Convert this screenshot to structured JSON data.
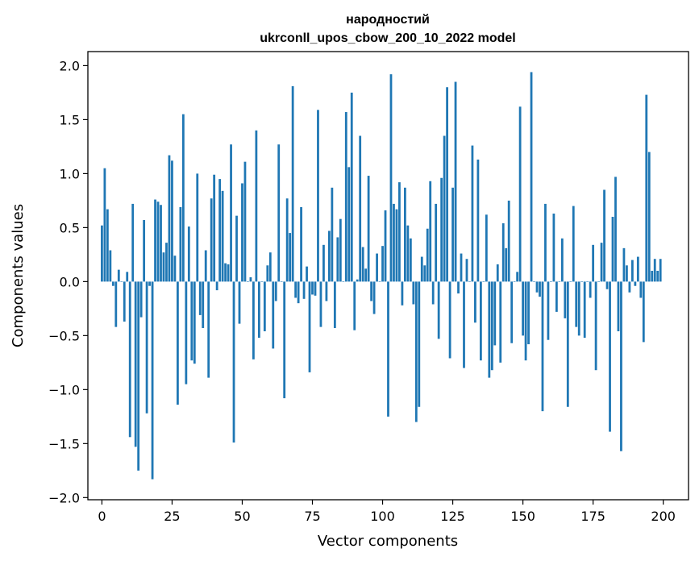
{
  "chart_data": {
    "type": "bar",
    "title": "народностий",
    "subtitle": "ukrconll_upos_cbow_200_10_2022 model",
    "xlabel": "Vector components",
    "ylabel": "Components values",
    "xlim": [
      -5,
      209
    ],
    "ylim": [
      -2.02,
      2.13
    ],
    "xticks": [
      0,
      25,
      50,
      75,
      100,
      125,
      150,
      175,
      200
    ],
    "yticks": [
      -2.0,
      -1.5,
      -1.0,
      -0.5,
      0.0,
      0.5,
      1.0,
      1.5,
      2.0
    ],
    "ytick_labels": [
      "−2.0",
      "−1.5",
      "−1.0",
      "−0.5",
      "0.0",
      "0.5",
      "1.0",
      "1.5",
      "2.0"
    ],
    "bar_color": "#1f77b4",
    "grid": false,
    "x": [
      0,
      1,
      2,
      3,
      4,
      5,
      6,
      7,
      8,
      9,
      10,
      11,
      12,
      13,
      14,
      15,
      16,
      17,
      18,
      19,
      20,
      21,
      22,
      23,
      24,
      25,
      26,
      27,
      28,
      29,
      30,
      31,
      32,
      33,
      34,
      35,
      36,
      37,
      38,
      39,
      40,
      41,
      42,
      43,
      44,
      45,
      46,
      47,
      48,
      49,
      50,
      51,
      52,
      53,
      54,
      55,
      56,
      57,
      58,
      59,
      60,
      61,
      62,
      63,
      64,
      65,
      66,
      67,
      68,
      69,
      70,
      71,
      72,
      73,
      74,
      75,
      76,
      77,
      78,
      79,
      80,
      81,
      82,
      83,
      84,
      85,
      86,
      87,
      88,
      89,
      90,
      91,
      92,
      93,
      94,
      95,
      96,
      97,
      98,
      99,
      100,
      101,
      102,
      103,
      104,
      105,
      106,
      107,
      108,
      109,
      110,
      111,
      112,
      113,
      114,
      115,
      116,
      117,
      118,
      119,
      120,
      121,
      122,
      123,
      124,
      125,
      126,
      127,
      128,
      129,
      130,
      131,
      132,
      133,
      134,
      135,
      136,
      137,
      138,
      139,
      140,
      141,
      142,
      143,
      144,
      145,
      146,
      147,
      148,
      149,
      150,
      151,
      152,
      153,
      154,
      155,
      156,
      157,
      158,
      159,
      160,
      161,
      162,
      163,
      164,
      165,
      166,
      167,
      168,
      169,
      170,
      171,
      172,
      173,
      174,
      175,
      176,
      177,
      178,
      179,
      180,
      181,
      182,
      183,
      184,
      185,
      186,
      187,
      188,
      189,
      190,
      191,
      192,
      193,
      194,
      195,
      196,
      197,
      198,
      199
    ],
    "values": [
      0.52,
      1.05,
      0.67,
      0.29,
      -0.04,
      -0.42,
      0.11,
      0.0,
      -0.37,
      0.09,
      -1.44,
      0.72,
      -1.53,
      -1.75,
      -0.33,
      0.57,
      -1.22,
      -0.04,
      -1.83,
      0.76,
      0.74,
      0.71,
      0.27,
      0.36,
      1.17,
      1.12,
      0.24,
      -1.14,
      0.69,
      1.55,
      -0.95,
      0.51,
      -0.73,
      -0.76,
      1.0,
      -0.31,
      -0.43,
      0.29,
      -0.89,
      0.77,
      0.99,
      -0.08,
      0.95,
      0.84,
      0.17,
      0.16,
      1.27,
      -1.49,
      0.61,
      -0.39,
      0.91,
      1.11,
      0.0,
      0.04,
      -0.72,
      1.4,
      -0.52,
      0.0,
      -0.46,
      0.15,
      0.27,
      -0.62,
      -0.18,
      1.27,
      0.0,
      -1.08,
      0.77,
      0.45,
      1.81,
      -0.15,
      -0.2,
      0.69,
      -0.16,
      0.14,
      -0.84,
      -0.12,
      -0.13,
      1.59,
      -0.42,
      0.34,
      -0.18,
      0.47,
      0.87,
      -0.43,
      0.41,
      0.58,
      0.0,
      1.57,
      1.06,
      1.75,
      -0.45,
      0.02,
      1.35,
      0.32,
      0.12,
      0.98,
      -0.18,
      -0.3,
      0.26,
      0.0,
      0.33,
      0.66,
      -1.25,
      1.92,
      0.72,
      0.67,
      0.92,
      -0.22,
      0.87,
      0.52,
      0.4,
      -0.21,
      -1.3,
      -1.16,
      0.23,
      0.15,
      0.49,
      0.93,
      -0.21,
      0.72,
      -0.53,
      0.96,
      1.35,
      1.8,
      -0.71,
      0.87,
      1.85,
      -0.11,
      0.26,
      -0.8,
      0.21,
      0.0,
      1.26,
      -0.38,
      1.13,
      -0.73,
      0.0,
      0.62,
      -0.89,
      -0.82,
      -0.59,
      0.16,
      -0.75,
      0.54,
      0.31,
      0.75,
      -0.57,
      0.0,
      0.09,
      1.62,
      -0.5,
      -0.73,
      -0.58,
      1.94,
      0.0,
      -0.1,
      -0.14,
      -1.2,
      0.72,
      -0.54,
      0.0,
      0.63,
      -0.28,
      0.0,
      0.4,
      -0.34,
      -1.16,
      0.0,
      0.7,
      -0.42,
      -0.5,
      0.0,
      -0.52,
      0.0,
      -0.15,
      0.34,
      -0.82,
      0.0,
      0.36,
      0.85,
      -0.07,
      -1.39,
      0.6,
      0.97,
      -0.46,
      -1.57,
      0.31,
      0.15,
      -0.1,
      0.2,
      -0.04,
      0.23,
      -0.15,
      -0.56,
      1.73,
      1.2,
      0.1,
      0.21,
      0.1,
      0.21
    ]
  }
}
